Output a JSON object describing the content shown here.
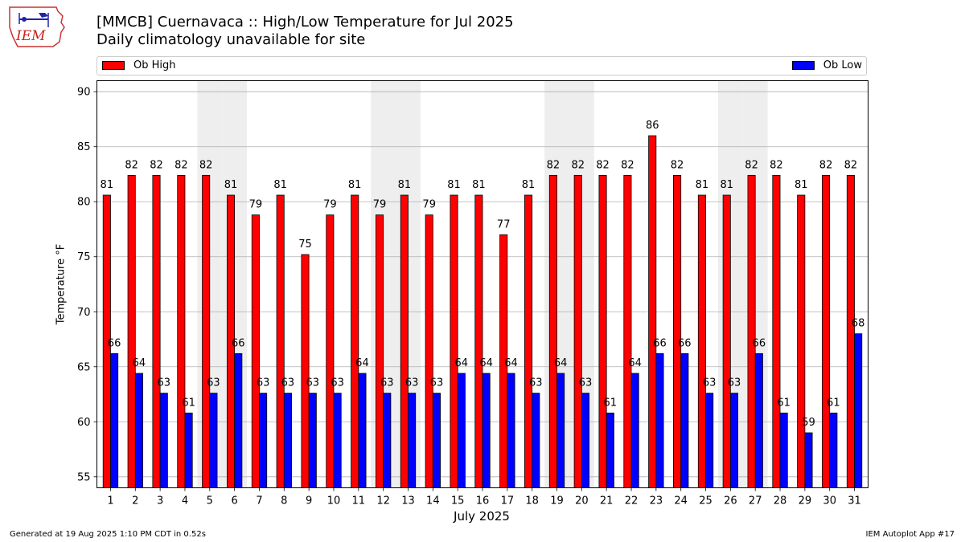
{
  "header": {
    "title": "[MMCB] Cuernavaca :: High/Low Temperature for Jul 2025",
    "subtitle": "Daily climatology unavailable for site",
    "logo_text": "IEM"
  },
  "legend": {
    "high_label": "Ob High",
    "low_label": "Ob Low"
  },
  "footer": {
    "left": "Generated at 19 Aug 2025 1:10 PM CDT in 0.52s",
    "right": "IEM Autoplot App #17"
  },
  "colors": {
    "high": "#ff0000",
    "low": "#0000ff",
    "weekend_shade": "#eeeeee",
    "grid": "#b0b0b0"
  },
  "chart_data": {
    "type": "bar",
    "xlabel": "July 2025",
    "ylabel": "Temperature $^\\circ$F",
    "ylabel_display": "Temperature °F",
    "ylim": [
      54,
      91
    ],
    "yticks": [
      55,
      60,
      65,
      70,
      75,
      80,
      85,
      90
    ],
    "grid": "horizontal",
    "legend_placement": "top (above plot)",
    "categories": [
      "1",
      "2",
      "3",
      "4",
      "5",
      "6",
      "7",
      "8",
      "9",
      "10",
      "11",
      "12",
      "13",
      "14",
      "15",
      "16",
      "17",
      "18",
      "19",
      "20",
      "21",
      "22",
      "23",
      "24",
      "25",
      "26",
      "27",
      "28",
      "29",
      "30",
      "31"
    ],
    "shaded_days": [
      5,
      6,
      12,
      13,
      19,
      20,
      26,
      27
    ],
    "series": [
      {
        "name": "Ob High",
        "values": [
          80.6,
          82.4,
          82.4,
          82.4,
          82.4,
          80.6,
          78.8,
          80.6,
          75.2,
          78.8,
          80.6,
          78.8,
          80.6,
          78.8,
          80.6,
          80.6,
          77.0,
          80.6,
          82.4,
          82.4,
          82.4,
          82.4,
          86.0,
          82.4,
          80.6,
          80.6,
          82.4,
          82.4,
          80.6,
          82.4,
          82.4
        ],
        "labels": [
          "81",
          "82",
          "82",
          "82",
          "82",
          "81",
          "79",
          "81",
          "75",
          "79",
          "81",
          "79",
          "81",
          "79",
          "81",
          "81",
          "77",
          "81",
          "82",
          "82",
          "82",
          "82",
          "86",
          "82",
          "81",
          "81",
          "82",
          "82",
          "81",
          "82",
          "82"
        ]
      },
      {
        "name": "Ob Low",
        "values": [
          66.2,
          64.4,
          62.6,
          60.8,
          62.6,
          66.2,
          62.6,
          62.6,
          62.6,
          62.6,
          64.4,
          62.6,
          62.6,
          62.6,
          64.4,
          64.4,
          64.4,
          62.6,
          64.4,
          62.6,
          60.8,
          64.4,
          66.2,
          66.2,
          62.6,
          62.6,
          66.2,
          60.8,
          59.0,
          60.8,
          68.0
        ],
        "labels": [
          "66",
          "64",
          "63",
          "61",
          "63",
          "66",
          "63",
          "63",
          "63",
          "63",
          "64",
          "63",
          "63",
          "63",
          "64",
          "64",
          "64",
          "63",
          "64",
          "63",
          "61",
          "64",
          "66",
          "66",
          "63",
          "63",
          "66",
          "61",
          "59",
          "61",
          "68"
        ]
      }
    ]
  }
}
